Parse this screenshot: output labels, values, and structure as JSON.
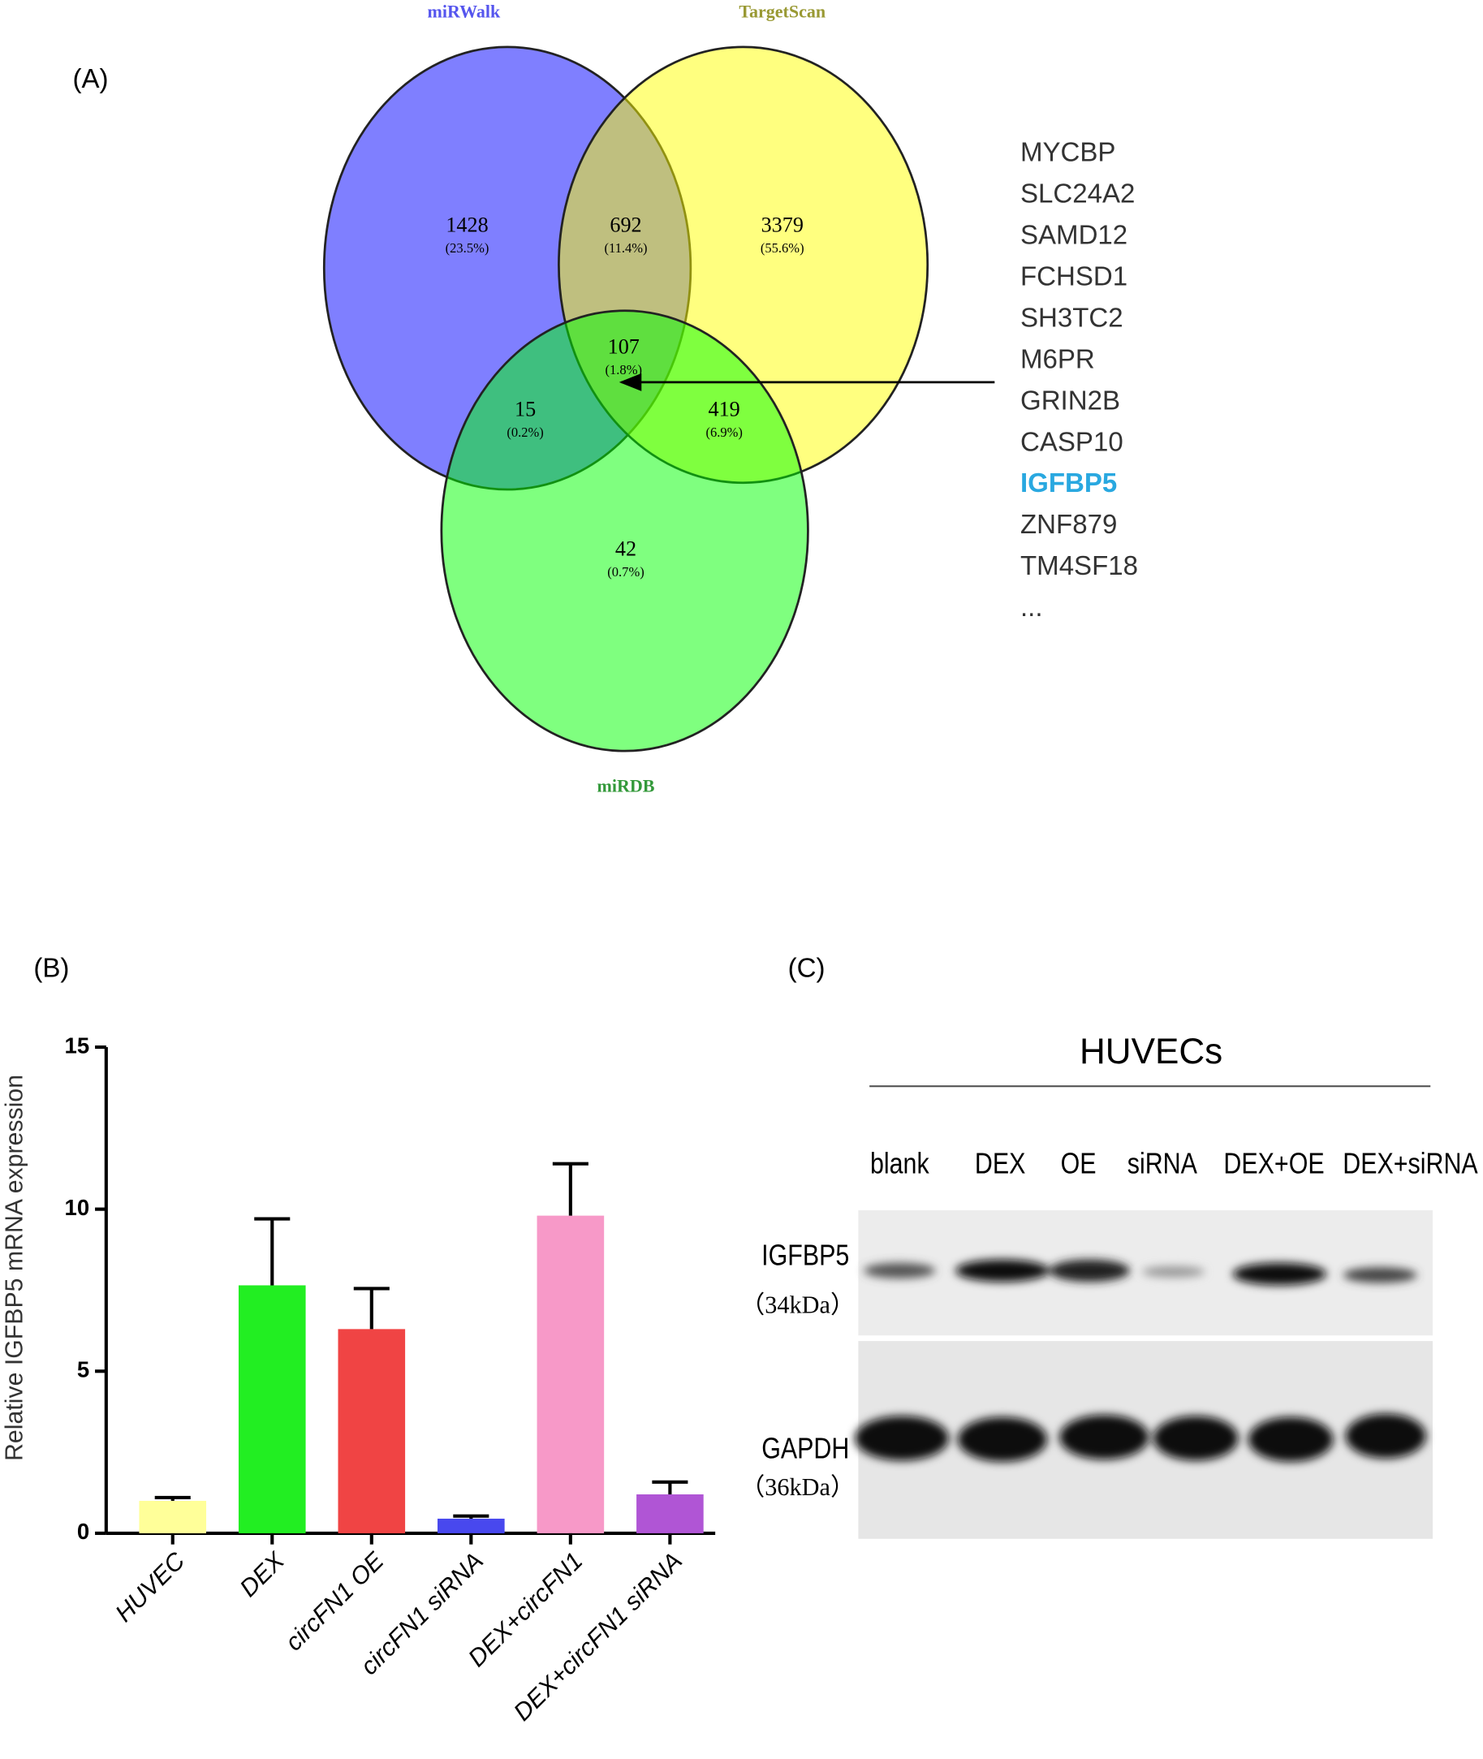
{
  "panel_labels": [
    "(A)",
    "(B)",
    "(C)"
  ],
  "venn": {
    "sets": [
      "miRWalk",
      "TargetScan",
      "miRDB"
    ],
    "regions": [
      {
        "count": 1428,
        "percent": "(23.5%)"
      },
      {
        "count": 692,
        "percent": "(11.4%)"
      },
      {
        "count": 3379,
        "percent": "(55.6%)"
      },
      {
        "count": 107,
        "percent": "(1.8%)"
      },
      {
        "count": 15,
        "percent": "(0.2%)"
      },
      {
        "count": 419,
        "percent": "(6.9%)"
      },
      {
        "count": 42,
        "percent": "(0.7%)"
      }
    ],
    "genes": [
      "MYCBP",
      "SLC24A2",
      "SAMD12",
      "FCHSD1",
      "SH3TC2",
      "M6PR",
      "GRIN2B",
      "CASP10",
      "IGFBP5",
      "ZNF879",
      "TM4SF18",
      "..."
    ]
  },
  "chart_data": {
    "type": "bar",
    "ylabel": "Relative IGFBP5 mRNA expression",
    "categories": [
      "HUVEC",
      "DEX",
      "circFN1 OE",
      "circFN1 siRNA",
      "DEX+circFN1",
      "DEX+circFN1 siRNA"
    ],
    "values": [
      1.0,
      7.65,
      6.3,
      0.45,
      9.8,
      1.2
    ],
    "errors": [
      0.1,
      2.05,
      1.25,
      0.08,
      1.6,
      0.38
    ],
    "colors": [
      "#ffff99",
      "#22ee22",
      "#f04444",
      "#4848ee",
      "#f799c8",
      "#b055d5"
    ],
    "ylim": [
      0,
      15
    ],
    "yticks": [
      0,
      5,
      10,
      15
    ]
  },
  "blot": {
    "title": "HUVECs",
    "lanes": [
      "blank",
      "DEX",
      "OE",
      "siRNA",
      "DEX+OE",
      "DEX+siRNA"
    ],
    "proteins": [
      {
        "name": "IGFBP5",
        "size": "（34kDa）"
      },
      {
        "name": "GAPDH",
        "size": "（36kDa）"
      }
    ]
  }
}
